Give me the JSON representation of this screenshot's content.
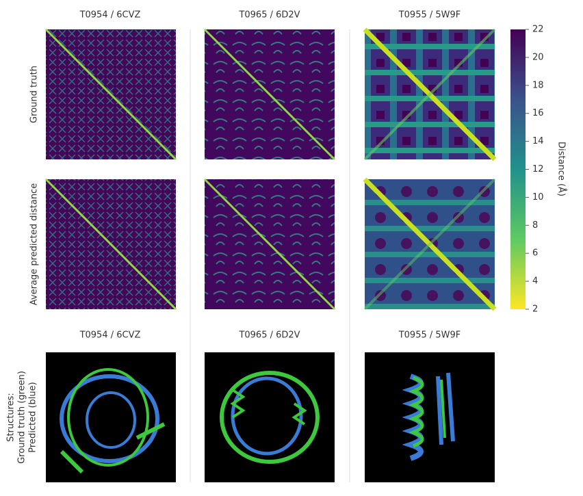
{
  "columns": [
    "T0954 / 6CVZ",
    "T0965 / 6D2V",
    "T0955 / 5W9F"
  ],
  "rows": [
    "Ground truth",
    "Average predicted distance"
  ],
  "structures": {
    "columns": [
      "T0954 / 6CVZ",
      "T0965 / 6D2V",
      "T0955 / 5W9F"
    ],
    "label": [
      "Structures:",
      "Ground truth (green)",
      "Predicted (blue)"
    ]
  },
  "colorbar": {
    "label": "Distance (Å)",
    "range": [
      2,
      22
    ],
    "ticks": [
      2,
      4,
      6,
      8,
      10,
      12,
      14,
      16,
      18,
      20,
      22
    ]
  }
}
